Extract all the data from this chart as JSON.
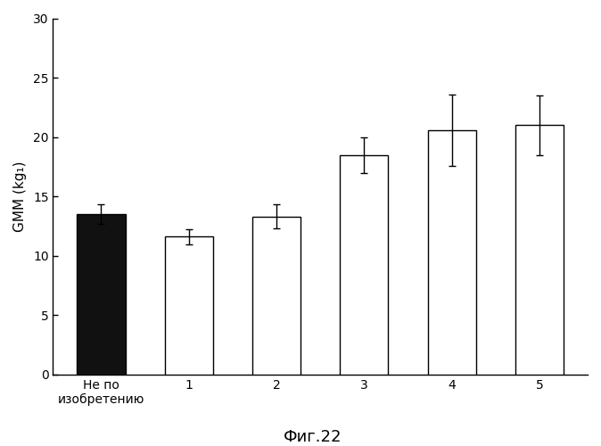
{
  "categories": [
    "Не по\nизобретению",
    "1",
    "2",
    "3",
    "4",
    "5"
  ],
  "values": [
    13.5,
    11.6,
    13.3,
    18.5,
    20.6,
    21.0
  ],
  "errors": [
    0.8,
    0.65,
    1.0,
    1.5,
    3.0,
    2.5
  ],
  "bar_colors": [
    "#111111",
    "#ffffff",
    "#ffffff",
    "#ffffff",
    "#ffffff",
    "#ffffff"
  ],
  "bar_edgecolors": [
    "#000000",
    "#000000",
    "#000000",
    "#000000",
    "#000000",
    "#000000"
  ],
  "ylabel": "GMM (kg₁)",
  "caption": "Фиг.22",
  "ylim": [
    0,
    30
  ],
  "yticks": [
    0,
    5,
    10,
    15,
    20,
    25,
    30
  ],
  "background_color": "#ffffff",
  "bar_width": 0.55,
  "error_capsize": 3,
  "ylabel_fontsize": 11,
  "tick_fontsize": 10,
  "caption_fontsize": 13
}
